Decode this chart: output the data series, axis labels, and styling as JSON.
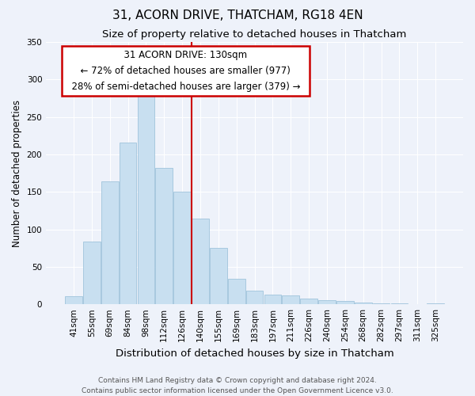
{
  "title": "31, ACORN DRIVE, THATCHAM, RG18 4EN",
  "subtitle": "Size of property relative to detached houses in Thatcham",
  "xlabel": "Distribution of detached houses by size in Thatcham",
  "ylabel": "Number of detached properties",
  "bar_labels": [
    "41sqm",
    "55sqm",
    "69sqm",
    "84sqm",
    "98sqm",
    "112sqm",
    "126sqm",
    "140sqm",
    "155sqm",
    "169sqm",
    "183sqm",
    "197sqm",
    "211sqm",
    "226sqm",
    "240sqm",
    "254sqm",
    "268sqm",
    "282sqm",
    "297sqm",
    "311sqm",
    "325sqm"
  ],
  "bar_values": [
    11,
    84,
    164,
    216,
    287,
    182,
    150,
    114,
    75,
    34,
    18,
    13,
    12,
    8,
    6,
    4,
    2,
    1,
    1,
    0.5,
    1
  ],
  "bar_color": "#c8dff0",
  "bar_edge_color": "#a0c4dc",
  "annotation_title": "31 ACORN DRIVE: 130sqm",
  "annotation_line1": "← 72% of detached houses are smaller (977)",
  "annotation_line2": "28% of semi-detached houses are larger (379) →",
  "annotation_box_color": "#ffffff",
  "annotation_box_edge_color": "#cc0000",
  "vline_color": "#cc0000",
  "vline_x": 6.5,
  "ylim": [
    0,
    350
  ],
  "yticks": [
    0,
    50,
    100,
    150,
    200,
    250,
    300,
    350
  ],
  "background_color": "#eef2fa",
  "grid_color": "#ffffff",
  "footer_line1": "Contains HM Land Registry data © Crown copyright and database right 2024.",
  "footer_line2": "Contains public sector information licensed under the Open Government Licence v3.0.",
  "title_fontsize": 11,
  "subtitle_fontsize": 9.5,
  "xlabel_fontsize": 9.5,
  "ylabel_fontsize": 8.5,
  "tick_fontsize": 7.5,
  "annotation_fontsize": 8.5,
  "footer_fontsize": 6.5
}
